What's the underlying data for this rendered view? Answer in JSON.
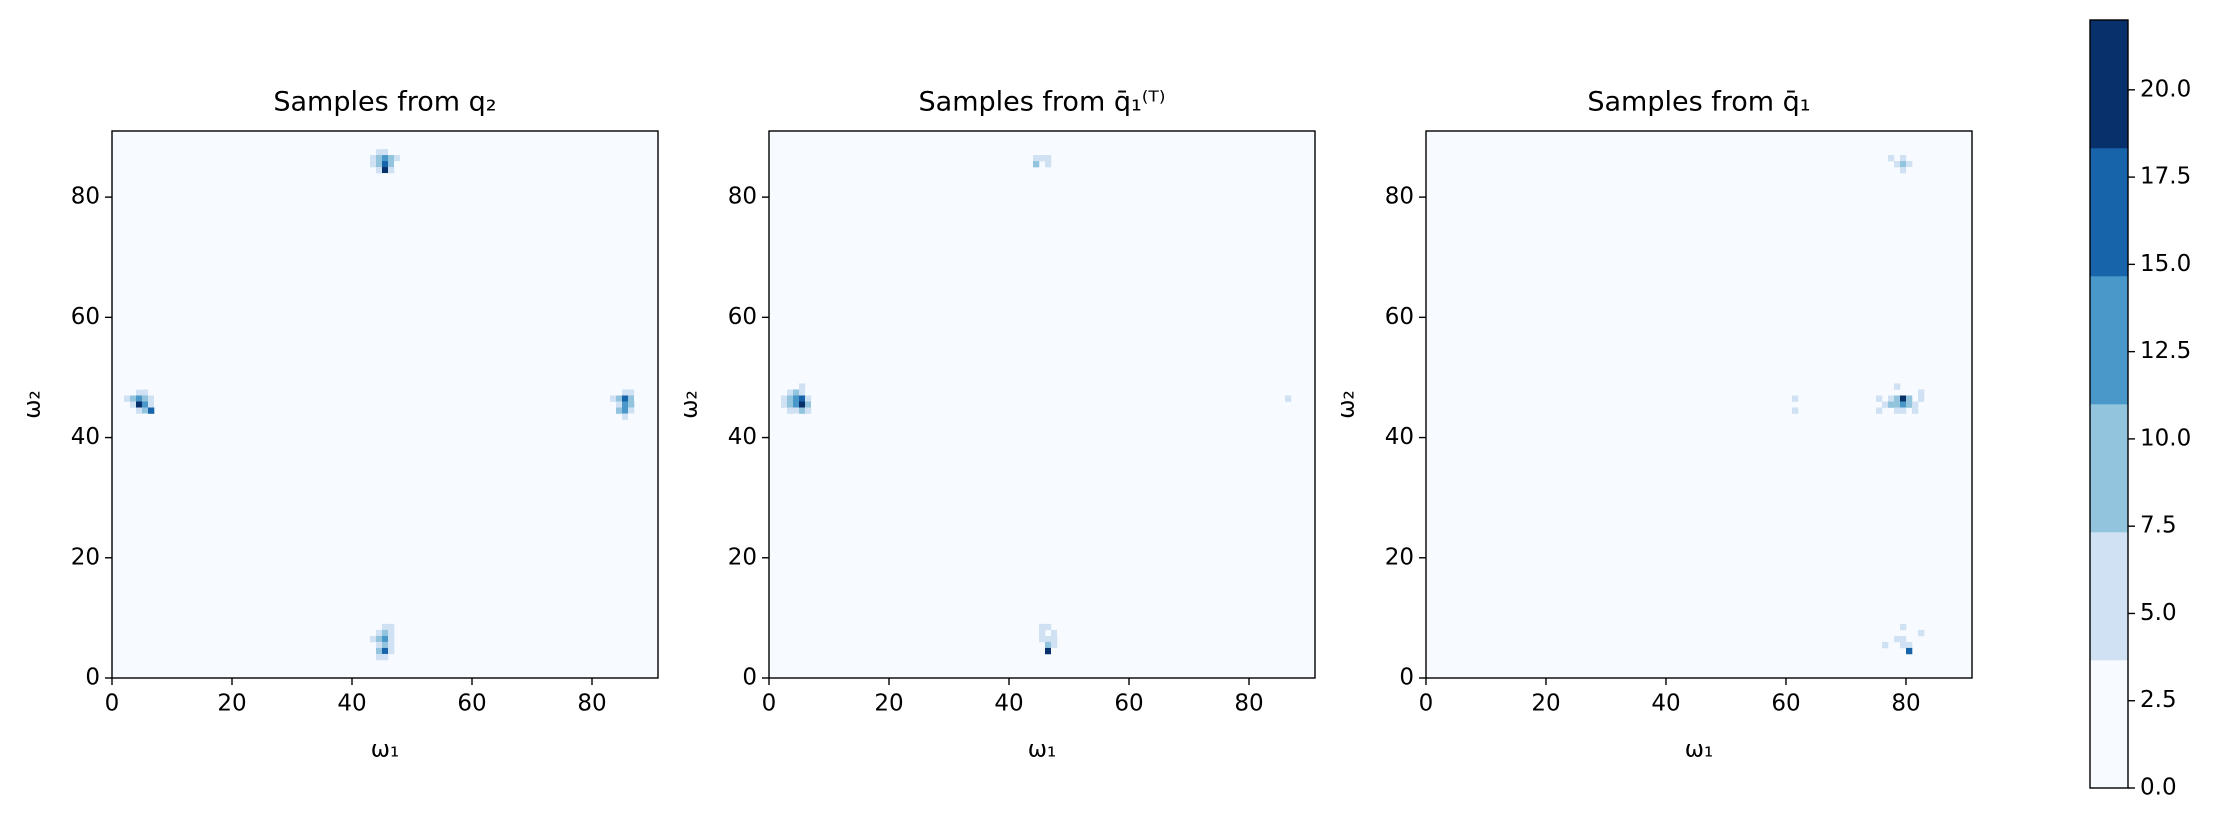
{
  "chart_data": [
    {
      "type": "heatmap",
      "title": "Samples from q₂",
      "xlabel": "ω₁",
      "ylabel": "ω₂",
      "xlim": [
        0,
        91
      ],
      "ylim": [
        0,
        91
      ],
      "xticks": [
        0,
        20,
        40,
        60,
        80
      ],
      "yticks": [
        0,
        20,
        40,
        60,
        80
      ],
      "cells": [
        [
          43,
          87,
          3
        ],
        [
          44,
          87,
          5
        ],
        [
          45,
          87,
          4
        ],
        [
          46,
          87,
          3
        ],
        [
          47,
          87,
          2
        ],
        [
          42,
          86,
          2
        ],
        [
          43,
          86,
          6
        ],
        [
          44,
          86,
          9
        ],
        [
          45,
          86,
          12
        ],
        [
          46,
          86,
          8
        ],
        [
          47,
          86,
          4
        ],
        [
          48,
          86,
          2
        ],
        [
          43,
          85,
          4
        ],
        [
          44,
          85,
          10
        ],
        [
          45,
          85,
          15
        ],
        [
          46,
          85,
          9
        ],
        [
          47,
          85,
          3
        ],
        [
          44,
          84,
          5
        ],
        [
          45,
          84,
          20
        ],
        [
          46,
          84,
          6
        ],
        [
          45,
          83,
          3
        ],
        [
          44,
          88,
          2
        ],
        [
          3,
          47,
          3
        ],
        [
          4,
          47,
          5
        ],
        [
          5,
          47,
          4
        ],
        [
          6,
          47,
          2
        ],
        [
          2,
          46,
          4
        ],
        [
          3,
          46,
          8
        ],
        [
          4,
          46,
          14
        ],
        [
          5,
          46,
          10
        ],
        [
          6,
          46,
          6
        ],
        [
          7,
          46,
          3
        ],
        [
          3,
          45,
          5
        ],
        [
          4,
          45,
          20
        ],
        [
          5,
          45,
          12
        ],
        [
          6,
          45,
          7
        ],
        [
          7,
          45,
          2
        ],
        [
          4,
          44,
          6
        ],
        [
          5,
          44,
          9
        ],
        [
          6,
          44,
          18
        ],
        [
          5,
          43,
          3
        ],
        [
          4,
          48,
          2
        ],
        [
          84,
          48,
          3
        ],
        [
          85,
          47,
          5
        ],
        [
          86,
          47,
          4
        ],
        [
          83,
          46,
          6
        ],
        [
          84,
          46,
          10
        ],
        [
          85,
          46,
          16
        ],
        [
          86,
          46,
          8
        ],
        [
          87,
          46,
          3
        ],
        [
          84,
          45,
          7
        ],
        [
          85,
          45,
          12
        ],
        [
          86,
          45,
          9
        ],
        [
          84,
          44,
          8
        ],
        [
          85,
          44,
          14
        ],
        [
          86,
          44,
          5
        ],
        [
          85,
          43,
          4
        ],
        [
          86,
          43,
          2
        ],
        [
          45,
          9,
          2
        ],
        [
          46,
          9,
          3
        ],
        [
          44,
          8,
          3
        ],
        [
          45,
          8,
          5
        ],
        [
          46,
          8,
          4
        ],
        [
          44,
          7,
          6
        ],
        [
          45,
          7,
          8
        ],
        [
          46,
          7,
          5
        ],
        [
          43,
          6,
          4
        ],
        [
          44,
          6,
          9
        ],
        [
          45,
          6,
          12
        ],
        [
          46,
          6,
          7
        ],
        [
          44,
          5,
          7
        ],
        [
          45,
          5,
          11
        ],
        [
          46,
          5,
          6
        ],
        [
          44,
          4,
          10
        ],
        [
          45,
          4,
          15
        ],
        [
          46,
          4,
          5
        ],
        [
          44,
          3,
          4
        ],
        [
          45,
          3,
          6
        ]
      ]
    },
    {
      "type": "heatmap",
      "title": "Samples from q̄₁⁽ᵀ⁾",
      "xlabel": "ω₁",
      "ylabel": "ω₂",
      "xlim": [
        0,
        91
      ],
      "ylim": [
        0,
        91
      ],
      "xticks": [
        0,
        20,
        40,
        60,
        80
      ],
      "yticks": [
        0,
        20,
        40,
        60,
        80
      ],
      "cells": [
        [
          35,
          87,
          2
        ],
        [
          37,
          87,
          2
        ],
        [
          45,
          87,
          3
        ],
        [
          47,
          87,
          2
        ],
        [
          44,
          86,
          5
        ],
        [
          45,
          86,
          7
        ],
        [
          46,
          86,
          4
        ],
        [
          44,
          85,
          8
        ],
        [
          46,
          85,
          5
        ],
        [
          45,
          84,
          3
        ],
        [
          45,
          82,
          2
        ],
        [
          4,
          48,
          3
        ],
        [
          5,
          48,
          4
        ],
        [
          3,
          47,
          5
        ],
        [
          4,
          47,
          9
        ],
        [
          5,
          47,
          6
        ],
        [
          6,
          47,
          3
        ],
        [
          2,
          46,
          4
        ],
        [
          3,
          46,
          10
        ],
        [
          4,
          46,
          12
        ],
        [
          5,
          46,
          16
        ],
        [
          6,
          46,
          7
        ],
        [
          2,
          45,
          6
        ],
        [
          3,
          45,
          9
        ],
        [
          4,
          45,
          13
        ],
        [
          5,
          45,
          22
        ],
        [
          6,
          45,
          8
        ],
        [
          7,
          45,
          3
        ],
        [
          3,
          44,
          5
        ],
        [
          4,
          44,
          7
        ],
        [
          5,
          44,
          10
        ],
        [
          6,
          44,
          4
        ],
        [
          4,
          43,
          3
        ],
        [
          5,
          42,
          2
        ],
        [
          85,
          47,
          3
        ],
        [
          86,
          46,
          4
        ],
        [
          85,
          45,
          2
        ],
        [
          86,
          44,
          3
        ],
        [
          87,
          45,
          2
        ],
        [
          35,
          5,
          2
        ],
        [
          37,
          5,
          2
        ],
        [
          46,
          9,
          3
        ],
        [
          45,
          8,
          4
        ],
        [
          46,
          8,
          5
        ],
        [
          44,
          7,
          3
        ],
        [
          45,
          7,
          6
        ],
        [
          47,
          7,
          4
        ],
        [
          48,
          7,
          3
        ],
        [
          45,
          6,
          5
        ],
        [
          46,
          6,
          7
        ],
        [
          47,
          6,
          6
        ],
        [
          46,
          5,
          8
        ],
        [
          47,
          5,
          4
        ],
        [
          46,
          4,
          20
        ],
        [
          47,
          4,
          3
        ]
      ]
    },
    {
      "type": "heatmap",
      "title": "Samples from q̄₁",
      "xlabel": "ω₁",
      "ylabel": "ω₂",
      "xlim": [
        0,
        91
      ],
      "ylim": [
        0,
        91
      ],
      "xticks": [
        0,
        20,
        40,
        60,
        80
      ],
      "yticks": [
        0,
        20,
        40,
        60,
        80
      ],
      "cells": [
        [
          60,
          87,
          2
        ],
        [
          63,
          87,
          2
        ],
        [
          76,
          87,
          3
        ],
        [
          80,
          87,
          3
        ],
        [
          77,
          86,
          4
        ],
        [
          79,
          86,
          5
        ],
        [
          81,
          86,
          3
        ],
        [
          78,
          85,
          6
        ],
        [
          79,
          85,
          9
        ],
        [
          80,
          85,
          5
        ],
        [
          82,
          85,
          3
        ],
        [
          79,
          84,
          4
        ],
        [
          80,
          84,
          3
        ],
        [
          60,
          47,
          2
        ],
        [
          62,
          47,
          3
        ],
        [
          61,
          46,
          4
        ],
        [
          62,
          45,
          3
        ],
        [
          61,
          44,
          5
        ],
        [
          64,
          44,
          3
        ],
        [
          76,
          48,
          3
        ],
        [
          78,
          48,
          4
        ],
        [
          80,
          48,
          3
        ],
        [
          82,
          47,
          4
        ],
        [
          75,
          46,
          4
        ],
        [
          77,
          46,
          6
        ],
        [
          78,
          46,
          8
        ],
        [
          79,
          46,
          20
        ],
        [
          80,
          46,
          9
        ],
        [
          82,
          46,
          5
        ],
        [
          76,
          45,
          7
        ],
        [
          77,
          45,
          9
        ],
        [
          78,
          45,
          10
        ],
        [
          79,
          45,
          14
        ],
        [
          80,
          45,
          8
        ],
        [
          81,
          45,
          5
        ],
        [
          83,
          45,
          3
        ],
        [
          75,
          44,
          5
        ],
        [
          78,
          44,
          7
        ],
        [
          79,
          44,
          6
        ],
        [
          81,
          44,
          4
        ],
        [
          83,
          44,
          3
        ],
        [
          61,
          5,
          2
        ],
        [
          64,
          5,
          2
        ],
        [
          78,
          9,
          3
        ],
        [
          77,
          8,
          3
        ],
        [
          79,
          8,
          4
        ],
        [
          80,
          7,
          3
        ],
        [
          82,
          7,
          4
        ],
        [
          78,
          6,
          5
        ],
        [
          79,
          6,
          6
        ],
        [
          81,
          6,
          3
        ],
        [
          76,
          5,
          4
        ],
        [
          79,
          5,
          5
        ],
        [
          80,
          5,
          6
        ],
        [
          82,
          5,
          3
        ],
        [
          80,
          4,
          18
        ],
        [
          79,
          3,
          3
        ]
      ]
    }
  ],
  "colorbar": {
    "lim": [
      0,
      22
    ],
    "levels": [
      0,
      3.667,
      7.333,
      11,
      14.667,
      18.333,
      22
    ],
    "colors": [
      "#f7fbff",
      "#cfe1f2",
      "#93c4de",
      "#4a98c9",
      "#1764ab",
      "#08306b"
    ],
    "ticks": [
      {
        "value": 0,
        "label": "0.0"
      },
      {
        "value": 2.5,
        "label": "2.5"
      },
      {
        "value": 5,
        "label": "5.0"
      },
      {
        "value": 7.5,
        "label": "7.5"
      },
      {
        "value": 10,
        "label": "10.0"
      },
      {
        "value": 12.5,
        "label": "12.5"
      },
      {
        "value": 15,
        "label": "15.0"
      },
      {
        "value": 17.5,
        "label": "17.5"
      },
      {
        "value": 20,
        "label": "20.0"
      }
    ]
  }
}
